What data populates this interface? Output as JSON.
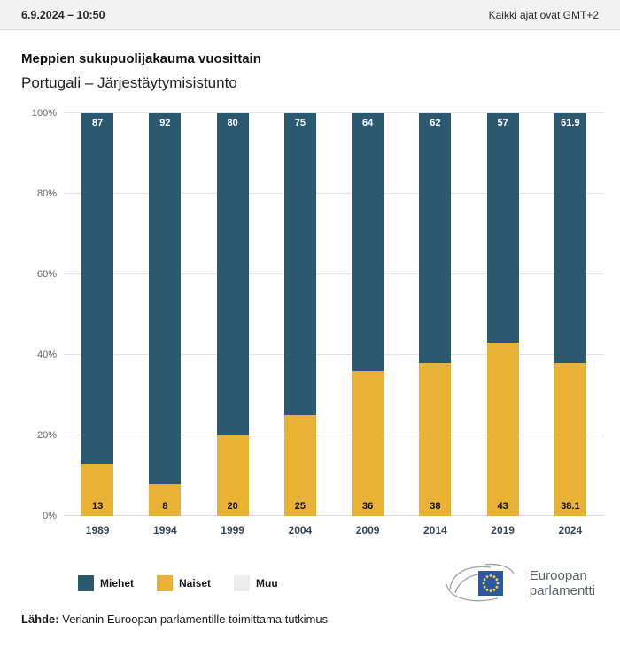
{
  "header": {
    "datetime": "6.9.2024 – 10:50",
    "timezone": "Kaikki ajat ovat GMT+2"
  },
  "title": "Meppien sukupuolijakauma vuosittain",
  "subtitle": "Portugali – Järjestäytymisistunto",
  "chart_data": {
    "type": "bar",
    "stacked": true,
    "percent_stacked": true,
    "categories": [
      "1989",
      "1994",
      "1999",
      "2004",
      "2009",
      "2014",
      "2019",
      "2024"
    ],
    "series": [
      {
        "name": "Miehet",
        "color": "#2b5970",
        "values": [
          87,
          92,
          80,
          75,
          64,
          62,
          57,
          61.9
        ]
      },
      {
        "name": "Naiset",
        "color": "#e9b234",
        "values": [
          13,
          8,
          20,
          25,
          36,
          38,
          43,
          38.1
        ]
      },
      {
        "name": "Muu",
        "color": "#ededed",
        "values": [
          0,
          0,
          0,
          0,
          0,
          0,
          0,
          0
        ]
      }
    ],
    "ylim": [
      0,
      100
    ],
    "yticks": [
      "0%",
      "20%",
      "40%",
      "60%",
      "80%",
      "100%"
    ],
    "grid": true,
    "legend_position": "bottom"
  },
  "legend": [
    {
      "label": "Miehet",
      "color": "#2b5970"
    },
    {
      "label": "Naiset",
      "color": "#e9b234"
    },
    {
      "label": "Muu",
      "color": "#ededed"
    }
  ],
  "source": {
    "label": "Lähde:",
    "text": " Verianin Euroopan parlamentille toimittama tutkimus"
  },
  "logo": {
    "line1": "Euroopan",
    "line2": "parlamentti",
    "flag_color": "#2d56a5",
    "star_color": "#ffd617"
  }
}
